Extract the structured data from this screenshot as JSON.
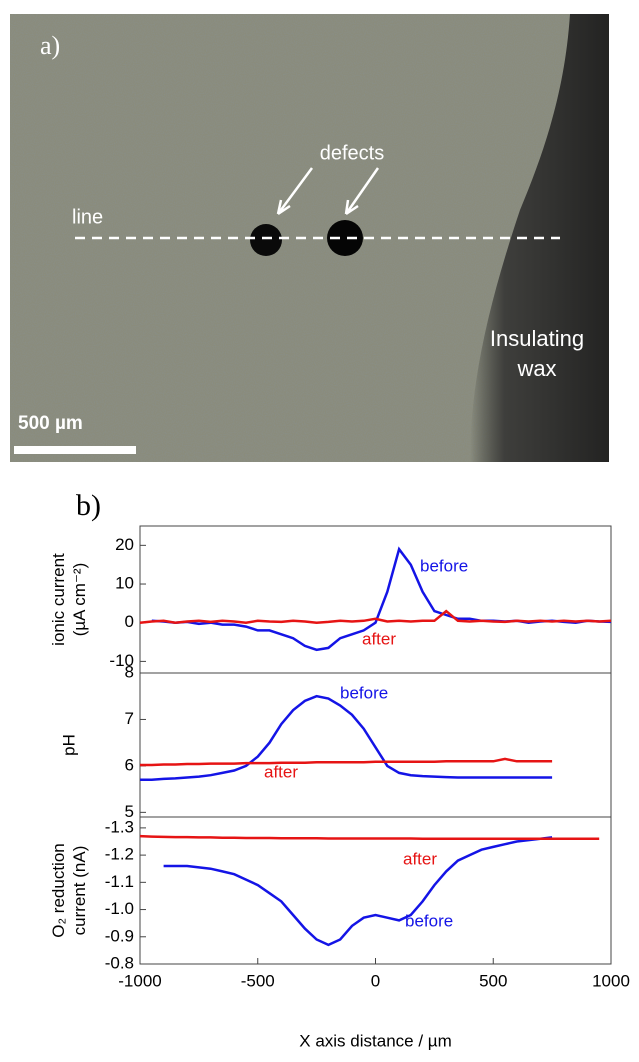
{
  "figure": {
    "panel_a": {
      "label": "a)",
      "defects": "defects",
      "line": "line",
      "wax": [
        "Insulating",
        "wax"
      ],
      "scale_bar": "500 µm"
    },
    "panel_b": {
      "label": "b)"
    }
  },
  "chart_data": [
    {
      "type": "line",
      "ylabel": [
        "ionic current",
        "(µA cm⁻²)"
      ],
      "x": [
        -1000,
        -950,
        -900,
        -850,
        -800,
        -750,
        -700,
        -650,
        -600,
        -550,
        -500,
        -450,
        -400,
        -350,
        -300,
        -250,
        -200,
        -150,
        -100,
        -50,
        0,
        50,
        100,
        150,
        200,
        250,
        300,
        350,
        400,
        450,
        500,
        550,
        600,
        650,
        700,
        750,
        800,
        850,
        900,
        950,
        1000
      ],
      "xlim": [
        -1000,
        1000
      ],
      "ylim": [
        -13,
        25
      ],
      "yticks": [
        -10,
        0,
        10,
        20
      ],
      "series": [
        {
          "name": "before",
          "color": "#1414e6",
          "values": [
            null,
            0.5,
            0.3,
            0,
            0.2,
            -0.3,
            0,
            -0.5,
            -0.5,
            -1,
            -2,
            -2,
            -3,
            -4,
            -6,
            -7,
            -6.5,
            -4,
            -3,
            -2,
            0,
            8,
            19,
            15,
            8,
            3,
            2,
            1,
            1,
            0.5,
            0.5,
            0.3,
            0.5,
            0,
            0.3,
            0.5,
            0.2,
            0,
            0.5,
            0.3,
            0.2
          ]
        },
        {
          "name": "after",
          "color": "#e61414",
          "values": [
            0,
            0.3,
            0.5,
            0,
            0.3,
            0.5,
            0.2,
            0.5,
            0.3,
            0,
            0.5,
            0.3,
            0.2,
            0.5,
            0.3,
            0,
            0.2,
            0.5,
            0.3,
            0.5,
            1,
            0.3,
            0.5,
            0.3,
            0.5,
            0.5,
            3,
            0.5,
            0.3,
            0.5,
            0.3,
            0.2,
            0.5,
            0.3,
            0.5,
            0.3,
            0.5,
            0.3,
            0.5,
            0.3,
            0.5
          ]
        }
      ]
    },
    {
      "type": "line",
      "ylabel": [
        "pH"
      ],
      "x": [
        -1000,
        -950,
        -900,
        -850,
        -800,
        -750,
        -700,
        -650,
        -600,
        -550,
        -500,
        -450,
        -400,
        -350,
        -300,
        -250,
        -200,
        -150,
        -100,
        -50,
        0,
        50,
        100,
        150,
        200,
        250,
        300,
        350,
        400,
        450,
        500,
        550,
        600,
        650,
        700,
        750,
        800,
        850,
        900,
        950,
        1000
      ],
      "xlim": [
        -1000,
        1000
      ],
      "ylim": [
        4.9,
        8
      ],
      "yticks": [
        5,
        6,
        7,
        8
      ],
      "series": [
        {
          "name": "before",
          "color": "#1414e6",
          "values": [
            5.7,
            5.7,
            5.72,
            5.73,
            5.75,
            5.77,
            5.8,
            5.85,
            5.9,
            6,
            6.2,
            6.5,
            6.9,
            7.2,
            7.4,
            7.5,
            7.45,
            7.3,
            7.1,
            6.8,
            6.4,
            6,
            5.85,
            5.8,
            5.78,
            5.77,
            5.76,
            5.75,
            5.75,
            5.75,
            5.75,
            5.75,
            5.75,
            5.75,
            5.75,
            5.75,
            null,
            null,
            null,
            null,
            null
          ]
        },
        {
          "name": "after",
          "color": "#e61414",
          "values": [
            6.02,
            6.02,
            6.03,
            6.03,
            6.04,
            6.04,
            6.05,
            6.05,
            6.05,
            6.06,
            6.06,
            6.06,
            6.07,
            6.07,
            6.07,
            6.08,
            6.08,
            6.08,
            6.08,
            6.08,
            6.09,
            6.09,
            6.09,
            6.09,
            6.09,
            6.09,
            6.1,
            6.1,
            6.1,
            6.1,
            6.1,
            6.15,
            6.1,
            6.1,
            6.1,
            6.1,
            null,
            null,
            null,
            null,
            null
          ]
        }
      ]
    },
    {
      "type": "line",
      "ylabel": [
        "O₂ reduction",
        "current (nA)"
      ],
      "xlabel": "X axis distance / µm",
      "x": [
        -1000,
        -950,
        -900,
        -850,
        -800,
        -750,
        -700,
        -650,
        -600,
        -550,
        -500,
        -450,
        -400,
        -350,
        -300,
        -250,
        -200,
        -150,
        -100,
        -50,
        0,
        50,
        100,
        150,
        200,
        250,
        300,
        350,
        400,
        450,
        500,
        550,
        600,
        650,
        700,
        750,
        800,
        850,
        900,
        950,
        1000
      ],
      "xlim": [
        -1000,
        1000
      ],
      "xticks": [
        -1000,
        -500,
        0,
        500,
        1000
      ],
      "ylim": [
        -0.8,
        -1.34
      ],
      "yticks": [
        -1.3,
        -1.2,
        -1.1,
        {
          "value": -1,
          "label": "-1.0"
        },
        -0.9,
        -0.8
      ],
      "series": [
        {
          "name": "before",
          "color": "#1414e6",
          "values": [
            null,
            null,
            -1.16,
            -1.16,
            -1.16,
            -1.155,
            -1.15,
            -1.14,
            -1.13,
            -1.11,
            -1.09,
            -1.06,
            -1.03,
            -0.98,
            -0.93,
            -0.89,
            -0.87,
            -0.89,
            -0.94,
            -0.97,
            -0.98,
            -0.97,
            -0.96,
            -0.98,
            -1.03,
            -1.09,
            -1.14,
            -1.18,
            -1.2,
            -1.22,
            -1.23,
            -1.24,
            -1.25,
            -1.255,
            -1.26,
            -1.265,
            null,
            null,
            null,
            null,
            null
          ]
        },
        {
          "name": "after",
          "color": "#e61414",
          "values": [
            -1.27,
            -1.268,
            -1.267,
            -1.266,
            -1.266,
            -1.265,
            -1.265,
            -1.264,
            -1.264,
            -1.263,
            -1.263,
            -1.263,
            -1.262,
            -1.262,
            -1.262,
            -1.262,
            -1.261,
            -1.261,
            -1.261,
            -1.261,
            -1.261,
            -1.261,
            -1.261,
            -1.261,
            -1.26,
            -1.26,
            -1.26,
            -1.26,
            -1.26,
            -1.26,
            -1.26,
            -1.26,
            -1.26,
            -1.26,
            -1.26,
            -1.26,
            -1.26,
            -1.26,
            -1.26,
            -1.26,
            null
          ]
        }
      ]
    }
  ]
}
